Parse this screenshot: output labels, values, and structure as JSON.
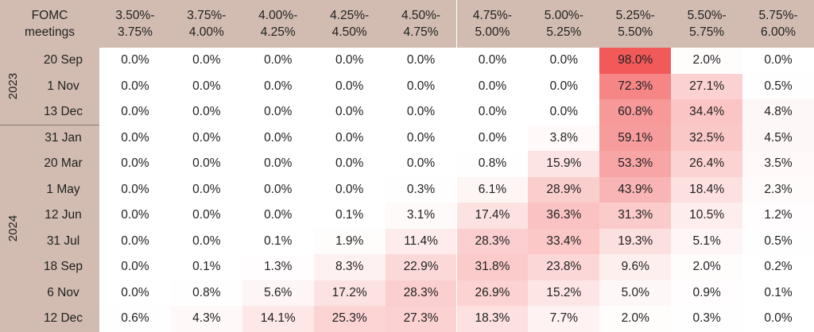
{
  "chart_data": {
    "type": "heatmap",
    "corner_label": "FOMC\nmeetings",
    "columns": [
      "3.50%-\n3.75%",
      "3.75%-\n4.00%",
      "4.00%-\n4.25%",
      "4.25%-\n4.50%",
      "4.50%-\n4.75%",
      "4.75%-\n5.00%",
      "5.00%-\n5.25%",
      "5.25%-\n5.50%",
      "5.50%-\n5.75%",
      "5.75%-\n6.00%"
    ],
    "year_groups": [
      {
        "year": "2023",
        "rows": 3
      },
      {
        "year": "2024",
        "rows": 8
      }
    ],
    "rows": [
      {
        "label": "20 Sep",
        "values": [
          0.0,
          0.0,
          0.0,
          0.0,
          0.0,
          0.0,
          0.0,
          98.0,
          2.0,
          0.0
        ]
      },
      {
        "label": "1 Nov",
        "values": [
          0.0,
          0.0,
          0.0,
          0.0,
          0.0,
          0.0,
          0.0,
          72.3,
          27.1,
          0.5
        ]
      },
      {
        "label": "13 Dec",
        "values": [
          0.0,
          0.0,
          0.0,
          0.0,
          0.0,
          0.0,
          0.0,
          60.8,
          34.4,
          4.8
        ]
      },
      {
        "label": "31 Jan",
        "values": [
          0.0,
          0.0,
          0.0,
          0.0,
          0.0,
          0.0,
          3.8,
          59.1,
          32.5,
          4.5
        ]
      },
      {
        "label": "20 Mar",
        "values": [
          0.0,
          0.0,
          0.0,
          0.0,
          0.0,
          0.8,
          15.9,
          53.3,
          26.4,
          3.5
        ]
      },
      {
        "label": "1 May",
        "values": [
          0.0,
          0.0,
          0.0,
          0.0,
          0.3,
          6.1,
          28.9,
          43.9,
          18.4,
          2.3
        ]
      },
      {
        "label": "12 Jun",
        "values": [
          0.0,
          0.0,
          0.0,
          0.1,
          3.1,
          17.4,
          36.3,
          31.3,
          10.5,
          1.2
        ]
      },
      {
        "label": "31 Jul",
        "values": [
          0.0,
          0.0,
          0.1,
          1.9,
          11.4,
          28.3,
          33.4,
          19.3,
          5.1,
          0.5
        ]
      },
      {
        "label": "18 Sep",
        "values": [
          0.0,
          0.1,
          1.3,
          8.3,
          22.9,
          31.8,
          23.8,
          9.6,
          2.0,
          0.2
        ]
      },
      {
        "label": "6 Nov",
        "values": [
          0.0,
          0.8,
          5.6,
          17.2,
          28.3,
          26.9,
          15.2,
          5.0,
          0.9,
          0.1
        ]
      },
      {
        "label": "12 Dec",
        "values": [
          0.6,
          4.3,
          14.1,
          25.3,
          27.3,
          18.3,
          7.7,
          2.0,
          0.3,
          0.0
        ]
      }
    ],
    "value_suffix": "%",
    "colors": {
      "header_bg": "#d2bcb1",
      "low": "#ffffff",
      "high": "#f25757"
    }
  }
}
